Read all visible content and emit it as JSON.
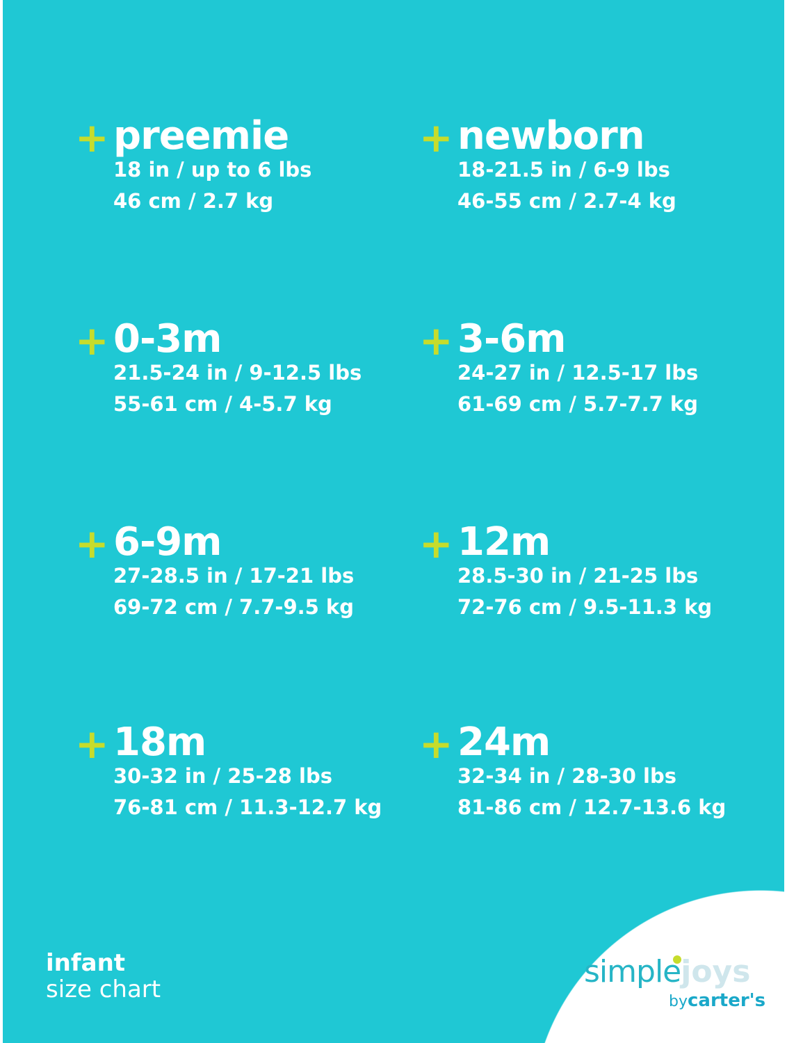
{
  "colors": {
    "background": "#1fc8d4",
    "plus": "#c6dc2c",
    "text": "#ffffff"
  },
  "sizes": [
    {
      "name": "preemie",
      "imperial": "18 in / up to 6 lbs",
      "metric": "46 cm / 2.7 kg"
    },
    {
      "name": "newborn",
      "imperial": "18-21.5 in / 6-9 lbs",
      "metric": "46-55 cm / 2.7-4 kg"
    },
    {
      "name": "0-3m",
      "imperial": "21.5-24 in / 9-12.5 lbs",
      "metric": "55-61 cm / 4-5.7 kg"
    },
    {
      "name": "3-6m",
      "imperial": "24-27 in / 12.5-17 lbs",
      "metric": "61-69 cm / 5.7-7.7 kg"
    },
    {
      "name": "6-9m",
      "imperial": "27-28.5 in / 17-21 lbs",
      "metric": "69-72 cm / 7.7-9.5 kg"
    },
    {
      "name": "12m",
      "imperial": "28.5-30 in / 21-25 lbs",
      "metric": "72-76 cm / 9.5-11.3 kg"
    },
    {
      "name": "18m",
      "imperial": "30-32 in / 25-28 lbs",
      "metric": "76-81 cm / 11.3-12.7 kg"
    },
    {
      "name": "24m",
      "imperial": "32-34 in / 28-30 lbs",
      "metric": "81-86 cm / 12.7-13.6 kg"
    }
  ],
  "plus_symbol": "+",
  "footer": {
    "line1": "infant",
    "line2": "size chart"
  },
  "logo": {
    "simple": "simple",
    "joys": "joys",
    "by": "by",
    "brand": "carter's"
  }
}
